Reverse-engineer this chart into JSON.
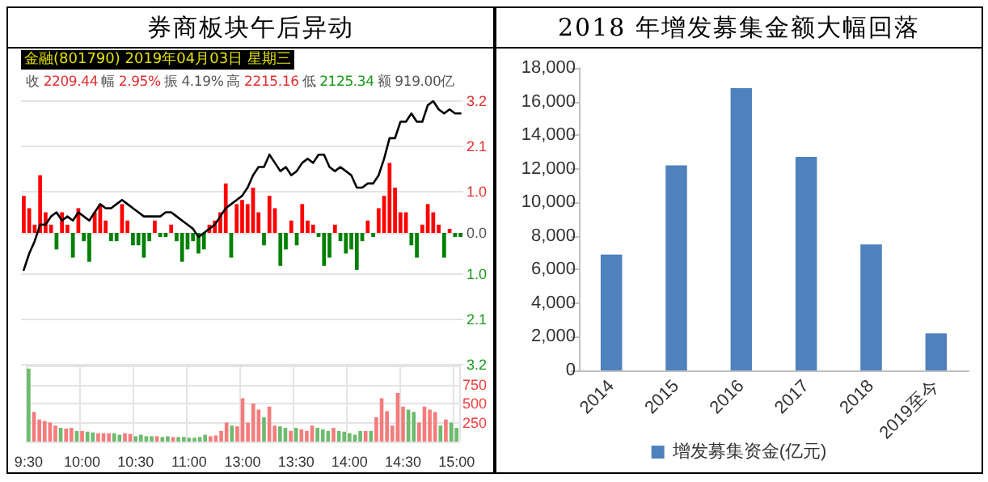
{
  "chart_data": [
    {
      "type": "line",
      "title": "券商板块午后异动",
      "annotations": [
        "金融(801790) 2019年04月03日 星期三",
        "收",
        "2209.44",
        "幅",
        "2.95%",
        "振",
        "4.19%",
        "高",
        "2215.16",
        "低",
        "2125.34",
        "额",
        "919.00亿"
      ],
      "categories": [
        null,
        null,
        null,
        null,
        null,
        null,
        null,
        null,
        null,
        null,
        null,
        null,
        null,
        null,
        null,
        null,
        null,
        null,
        null,
        null,
        null,
        null,
        null,
        null,
        null,
        null,
        null,
        null,
        null,
        null,
        null,
        null,
        null,
        null,
        null,
        null,
        null,
        null,
        null,
        null,
        null,
        null,
        null,
        null,
        null,
        null,
        null,
        null,
        null,
        null,
        null,
        null,
        null,
        null,
        null,
        null,
        null,
        null,
        null,
        null,
        null,
        null,
        null,
        null,
        null,
        null,
        null,
        null,
        null,
        null,
        null,
        null,
        null,
        null,
        null,
        null,
        null,
        null,
        null,
        null,
        null
      ],
      "ylim": [
        -3.2,
        3.2
      ],
      "yticks": [
        {
          "value": -3.2,
          "label": "3.2"
        },
        {
          "value": -2.1,
          "label": "2.1"
        },
        {
          "value": -1.0,
          "label": "1.0"
        },
        {
          "value": 0,
          "label": "0.0"
        },
        {
          "value": 1.0,
          "label": "1.0"
        },
        {
          "value": 2.1,
          "label": "2.1"
        },
        {
          "value": 3.2,
          "label": "3.2"
        }
      ],
      "tick_labels": "y",
      "grid": "y",
      "line_style": "solid",
      "series": [
        {
          "type": "bar",
          "color": "#ff0000",
          "values": [
            0.9,
            0.6,
            0.2,
            1.4,
            0.5,
            0.2,
            null,
            0.5,
            0.2,
            null,
            0.6,
            null,
            null,
            0.5,
            0.7,
            0.3,
            null,
            null,
            0.7,
            0.3,
            null,
            null,
            null,
            null,
            0.3,
            null,
            null,
            0.2,
            null,
            null,
            null,
            null,
            null,
            null,
            0.2,
            0.3,
            0.5,
            1.2,
            null,
            0.7,
            0.8,
            0.7,
            1.1,
            0.5,
            null,
            0.9,
            0.6,
            null,
            null,
            0.3,
            null,
            0.7,
            0.3,
            0.2,
            null,
            null,
            null,
            0.2,
            null,
            null,
            null,
            null,
            null,
            0.3,
            null,
            0.6,
            0.9,
            1.7,
            1.1,
            0.5,
            0.5,
            null,
            null,
            0.2,
            0.7,
            0.5,
            0.2,
            null,
            0.1,
            null,
            null
          ]
        },
        {
          "type": "bar",
          "color": "#008000",
          "values": [
            null,
            null,
            null,
            null,
            null,
            null,
            -0.4,
            null,
            null,
            -0.6,
            null,
            -0.2,
            -0.7,
            null,
            null,
            null,
            -0.2,
            -0.2,
            null,
            null,
            -0.3,
            -0.3,
            -0.6,
            -0.2,
            null,
            -0.1,
            -0.1,
            null,
            -0.2,
            -0.7,
            -0.4,
            -0.2,
            -0.5,
            -0.4,
            null,
            null,
            null,
            null,
            -0.6,
            null,
            null,
            null,
            null,
            null,
            -0.3,
            null,
            null,
            -0.8,
            -0.4,
            null,
            -0.3,
            null,
            null,
            null,
            -0.1,
            -0.8,
            -0.6,
            null,
            -0.2,
            -0.5,
            -0.4,
            -0.9,
            -0.2,
            null,
            -0.1,
            null,
            null,
            null,
            null,
            null,
            null,
            -0.3,
            -0.6,
            null,
            null,
            null,
            null,
            -0.6,
            null,
            -0.1,
            -0.1
          ]
        },
        {
          "type": "line",
          "color": "#000000",
          "values": [
            -0.9,
            -0.5,
            -0.2,
            0.2,
            0.2,
            0.4,
            0.5,
            0.3,
            0.4,
            0.3,
            0.5,
            0.4,
            0.3,
            0.5,
            0.7,
            0.6,
            0.6,
            0.7,
            0.8,
            0.7,
            0.6,
            0.5,
            0.4,
            0.4,
            0.4,
            0.4,
            0.5,
            0.5,
            0.4,
            0.3,
            0.2,
            0.1,
            -0.1,
            0,
            0.1,
            0.2,
            0.4,
            0.6,
            0.7,
            0.8,
            0.9,
            1.1,
            1.4,
            1.6,
            1.6,
            1.9,
            1.7,
            1.5,
            1.6,
            1.4,
            1.5,
            1.7,
            1.8,
            1.7,
            1.9,
            1.9,
            1.6,
            1.5,
            1.6,
            1.5,
            1.4,
            1.1,
            1.1,
            1.2,
            1.2,
            1.4,
            1.8,
            2.3,
            2.3,
            2.7,
            2.7,
            2.9,
            2.7,
            2.7,
            3.1,
            3.2,
            3.0,
            2.9,
            3.0,
            2.9,
            2.9
          ]
        }
      ]
    },
    {
      "type": "bar",
      "categories": [
        "9:30",
        null,
        null,
        null,
        null,
        null,
        null,
        null,
        null,
        null,
        "10:00",
        null,
        null,
        null,
        null,
        null,
        null,
        null,
        null,
        null,
        "10:30",
        null,
        null,
        null,
        null,
        null,
        null,
        null,
        null,
        null,
        "11:00",
        null,
        null,
        null,
        null,
        null,
        null,
        null,
        null,
        null,
        "13:00",
        null,
        null,
        null,
        null,
        null,
        null,
        null,
        null,
        null,
        "13:30",
        null,
        null,
        null,
        null,
        null,
        null,
        null,
        null,
        null,
        "14:00",
        null,
        null,
        null,
        null,
        null,
        null,
        null,
        null,
        null,
        "14:30",
        null,
        null,
        null,
        null,
        null,
        null,
        null,
        null,
        null,
        "15:00"
      ],
      "ylim": [
        0,
        1000
      ],
      "yticks": [
        {
          "value": 0,
          "label": null
        },
        250,
        500,
        750,
        {
          "value": 1000,
          "label": null
        }
      ],
      "grid": true,
      "values": [
        960,
        390,
        290,
        270,
        250,
        210,
        180,
        170,
        180,
        140,
        140,
        130,
        120,
        110,
        110,
        110,
        110,
        90,
        110,
        100,
        70,
        90,
        70,
        70,
        70,
        60,
        70,
        60,
        60,
        60,
        50,
        50,
        60,
        90,
        70,
        80,
        140,
        250,
        210,
        200,
        570,
        250,
        500,
        420,
        320,
        460,
        210,
        200,
        180,
        140,
        180,
        160,
        140,
        210,
        180,
        160,
        140,
        180,
        140,
        130,
        110,
        90,
        140,
        140,
        140,
        320,
        570,
        400,
        210,
        640,
        460,
        420,
        390,
        250,
        460,
        420,
        390,
        210,
        290,
        250,
        180
      ],
      "colors": [
        "#6dbb6d",
        "#f47c7c",
        "#f47c7c",
        "#f47c7c",
        "#f47c7c",
        "#f47c7c",
        "#6dbb6d",
        "#f47c7c",
        "#f47c7c",
        "#6dbb6d",
        "#f47c7c",
        "#6dbb6d",
        "#6dbb6d",
        "#f47c7c",
        "#f47c7c",
        "#f47c7c",
        "#6dbb6d",
        "#6dbb6d",
        "#f47c7c",
        "#f47c7c",
        "#6dbb6d",
        "#6dbb6d",
        "#6dbb6d",
        "#6dbb6d",
        "#f47c7c",
        "#6dbb6d",
        "#6dbb6d",
        "#f47c7c",
        "#6dbb6d",
        "#6dbb6d",
        "#6dbb6d",
        "#6dbb6d",
        "#6dbb6d",
        "#6dbb6d",
        "#f47c7c",
        "#f47c7c",
        "#f47c7c",
        "#f47c7c",
        "#6dbb6d",
        "#f47c7c",
        "#f47c7c",
        "#f47c7c",
        "#f47c7c",
        "#f47c7c",
        "#6dbb6d",
        "#f47c7c",
        "#f47c7c",
        "#6dbb6d",
        "#6dbb6d",
        "#f47c7c",
        "#6dbb6d",
        "#f47c7c",
        "#f47c7c",
        "#f47c7c",
        "#6dbb6d",
        "#6dbb6d",
        "#6dbb6d",
        "#f47c7c",
        "#6dbb6d",
        "#6dbb6d",
        "#6dbb6d",
        "#6dbb6d",
        "#6dbb6d",
        "#f47c7c",
        "#6dbb6d",
        "#f47c7c",
        "#f47c7c",
        "#f47c7c",
        "#f47c7c",
        "#f47c7c",
        "#f47c7c",
        "#6dbb6d",
        "#6dbb6d",
        "#f47c7c",
        "#f47c7c",
        "#f47c7c",
        "#f47c7c",
        "#6dbb6d",
        "#f47c7c",
        "#6dbb6d",
        "#6dbb6d"
      ]
    },
    {
      "type": "bar",
      "title": "2018 年增发募集金额大幅回落",
      "categories": [
        "2014",
        "2015",
        "2016",
        "2017",
        "2018",
        "2019至今"
      ],
      "series": [
        {
          "name": "增发募集资金(亿元)",
          "color": "#4f81bd",
          "values": [
            6900,
            12200,
            16800,
            12700,
            7500,
            2200
          ]
        }
      ],
      "ylim": [
        0,
        18000
      ],
      "yticks": [
        0,
        {
          "value": 2000,
          "label": "2,000"
        },
        {
          "value": 4000,
          "label": "4,000"
        },
        {
          "value": 6000,
          "label": "6,000"
        },
        {
          "value": 8000,
          "label": "8,000"
        },
        {
          "value": 10000,
          "label": "10,000"
        },
        {
          "value": 12000,
          "label": "12,000"
        },
        {
          "value": 14000,
          "label": "14,000"
        },
        {
          "value": 16000,
          "label": "16,000"
        },
        {
          "value": 18000,
          "label": "18,000"
        }
      ],
      "grid": false,
      "legend": "bottom"
    }
  ]
}
